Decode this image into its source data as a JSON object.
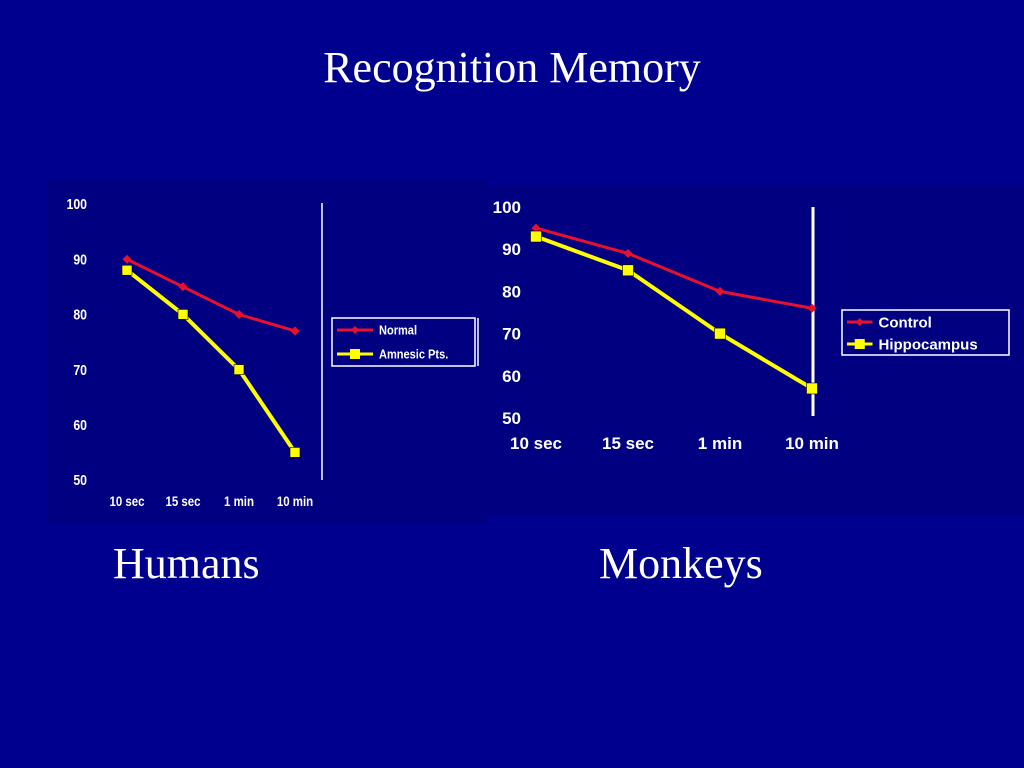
{
  "slide": {
    "title": "Recognition Memory",
    "captions": [
      "Humans",
      "Monkeys"
    ]
  },
  "colors": {
    "background": "#00008f",
    "panel_bg": "#000080",
    "red_series": "#e8112d",
    "yellow_series": "#ffff00",
    "axis_text": "#ffffff"
  },
  "chart_data": [
    {
      "type": "line",
      "categories": [
        "10 sec",
        "15 sec",
        "1 min",
        "10 min"
      ],
      "ylim": [
        50,
        100
      ],
      "yticks": [
        50,
        60,
        70,
        80,
        90,
        100
      ],
      "series": [
        {
          "name": "Normal",
          "values": [
            90,
            85,
            80,
            77
          ]
        },
        {
          "name": "Amnesic Pts.",
          "values": [
            88,
            80,
            70,
            55
          ]
        }
      ],
      "legend": "right"
    },
    {
      "type": "line",
      "categories": [
        "10 sec",
        "15 sec",
        "1 min",
        "10 min"
      ],
      "ylim": [
        50,
        100
      ],
      "yticks": [
        50,
        60,
        70,
        80,
        90,
        100
      ],
      "series": [
        {
          "name": "Control",
          "values": [
            95,
            89,
            80,
            76
          ]
        },
        {
          "name": "Hippocampus",
          "values": [
            93,
            85,
            70,
            57
          ]
        }
      ],
      "legend": "right"
    }
  ]
}
